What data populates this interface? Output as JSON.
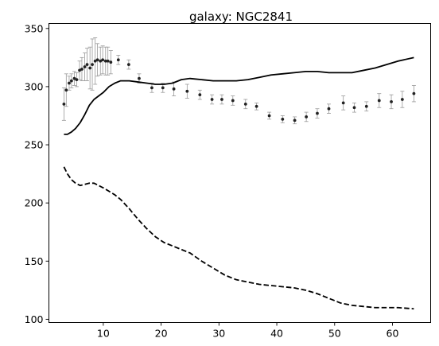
{
  "chart_data": {
    "type": "scatter",
    "title": "galaxy: NGC2841",
    "xlabel": "",
    "ylabel": "",
    "xlim": [
      0.6,
      66.6
    ],
    "ylim": [
      97.2,
      354.3
    ],
    "x_ticks": [
      10,
      20,
      30,
      40,
      50,
      60
    ],
    "y_ticks": [
      100,
      150,
      200,
      250,
      300,
      350
    ],
    "grid": false,
    "legend": "none",
    "series": [
      {
        "style": "errorbar-points",
        "color": "#222222",
        "ecolor": "#999999",
        "x": [
          3.2,
          3.6,
          4.1,
          4.5,
          5.0,
          5.4,
          5.9,
          6.3,
          6.8,
          7.2,
          7.7,
          8.1,
          8.6,
          9.0,
          9.5,
          9.9,
          10.4,
          10.8,
          11.3,
          12.6,
          14.4,
          16.2,
          18.4,
          20.3,
          22.2,
          24.5,
          26.7,
          28.8,
          30.5,
          32.4,
          34.6,
          36.5,
          38.7,
          41.0,
          43.1,
          45.1,
          47.0,
          49.0,
          51.5,
          53.4,
          55.5,
          57.7,
          59.8,
          61.7,
          63.7
        ],
        "y": [
          285,
          297,
          303,
          305,
          307,
          306,
          314,
          315,
          317,
          319,
          316,
          319,
          322,
          323,
          322,
          323,
          322,
          322,
          321,
          323,
          319,
          307,
          299,
          299,
          298,
          296,
          293,
          289,
          289,
          288,
          285,
          283,
          275,
          272,
          271,
          274,
          277,
          281,
          286,
          282,
          283,
          288,
          287,
          289,
          294
        ],
        "yerr": [
          14,
          14,
          6,
          6,
          6,
          6,
          8,
          10,
          12,
          14,
          18,
          22,
          20,
          14,
          12,
          12,
          12,
          12,
          10,
          4,
          4,
          4,
          4,
          4,
          6,
          6,
          4,
          4,
          4,
          4,
          4,
          3,
          3,
          3,
          3,
          4,
          4,
          4,
          6,
          4,
          4,
          6,
          6,
          7,
          7
        ]
      },
      {
        "style": "solid-line",
        "color": "#000000",
        "x": [
          3.2,
          3.8,
          4.5,
          5.2,
          6.0,
          6.8,
          7.6,
          8.4,
          9.2,
          10.0,
          11.0,
          12.0,
          13.0,
          14.5,
          16.0,
          17.5,
          19.0,
          20.5,
          22.0,
          23.5,
          25.0,
          27.0,
          29.0,
          31.0,
          33.0,
          35.0,
          37.0,
          39.0,
          41.0,
          43.0,
          45.0,
          47.0,
          49.0,
          51.0,
          53.0,
          55.0,
          57.0,
          59.0,
          61.0,
          63.7
        ],
        "y": [
          259,
          259,
          261,
          264,
          269,
          276,
          284,
          289,
          292,
          295,
          300,
          303,
          305,
          305,
          304,
          303,
          302,
          302,
          303,
          306,
          307,
          306,
          305,
          305,
          305,
          306,
          308,
          310,
          311,
          312,
          313,
          313,
          312,
          312,
          312,
          314,
          316,
          319,
          322,
          325
        ]
      },
      {
        "style": "dashed-line",
        "color": "#000000",
        "x": [
          3.2,
          3.8,
          4.5,
          5.2,
          6.0,
          6.8,
          7.6,
          8.4,
          9.2,
          10.0,
          11.0,
          12.0,
          13.0,
          14.5,
          16.0,
          17.5,
          19.0,
          20.5,
          22.0,
          23.5,
          25.0,
          27.0,
          29.0,
          31.0,
          33.0,
          35.0,
          37.0,
          39.0,
          41.0,
          43.0,
          45.0,
          47.0,
          49.0,
          51.0,
          53.0,
          55.0,
          57.0,
          59.0,
          61.0,
          63.7
        ],
        "y": [
          231,
          225,
          220,
          217,
          215,
          216,
          217,
          217,
          215,
          213,
          210,
          207,
          203,
          195,
          186,
          178,
          171,
          166,
          163,
          160,
          157,
          150,
          144,
          138,
          134,
          132,
          130,
          129,
          128,
          127,
          125,
          122,
          118,
          114,
          112,
          111,
          110,
          110,
          110,
          109
        ]
      }
    ]
  }
}
